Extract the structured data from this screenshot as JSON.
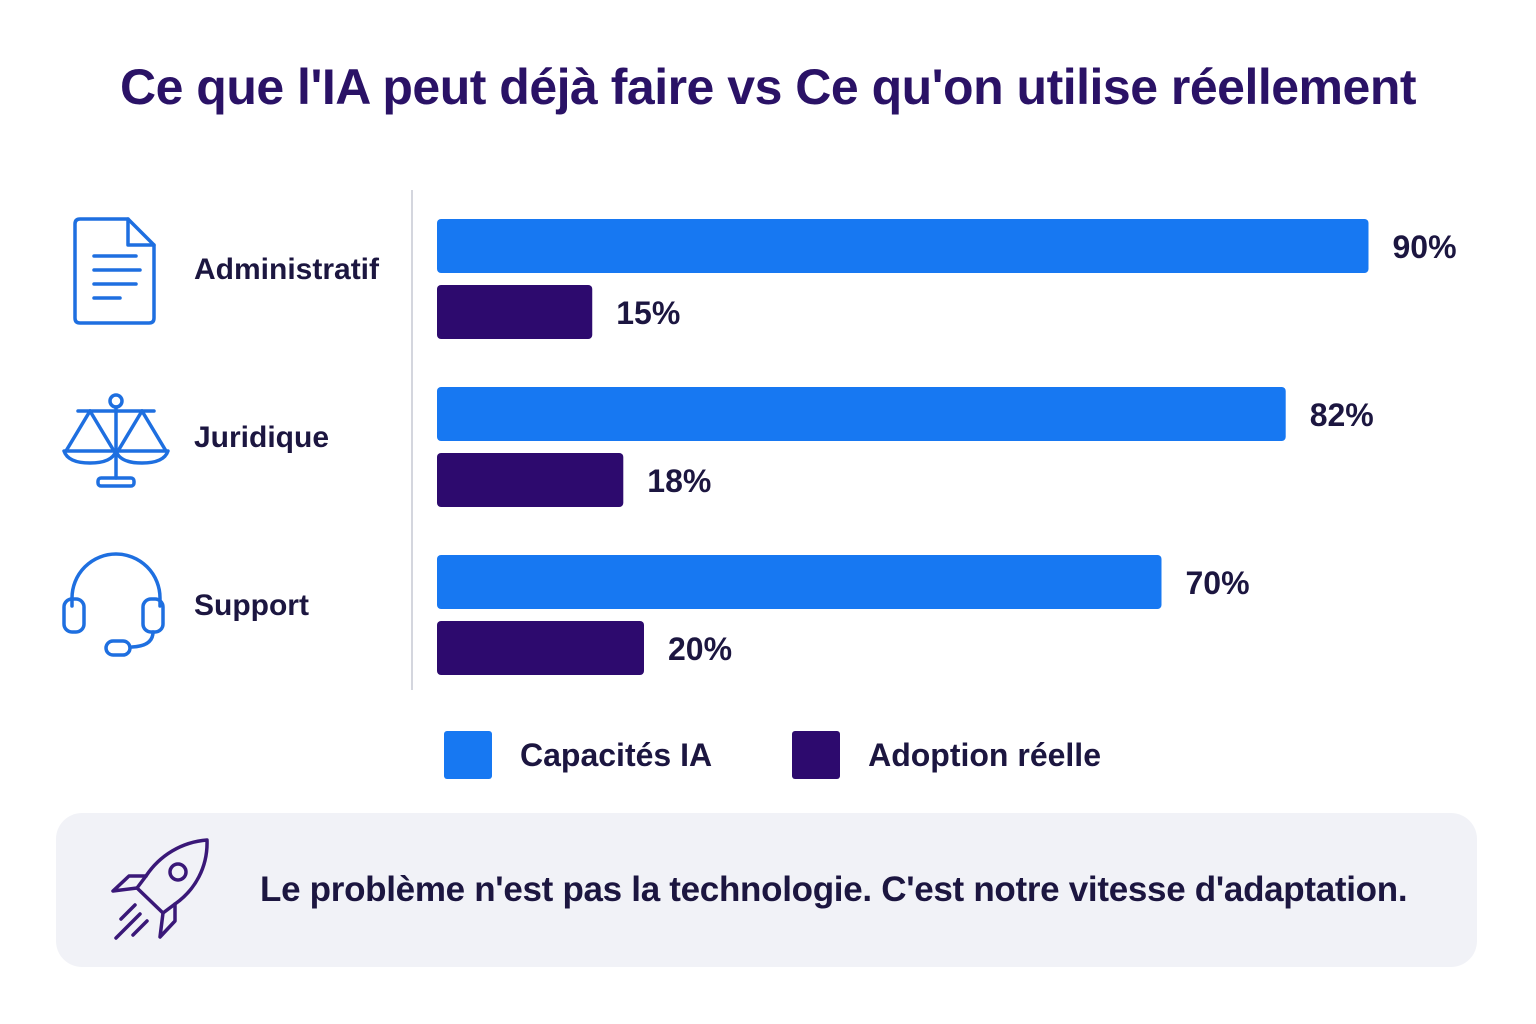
{
  "title": "Ce que l'IA peut déjà faire vs Ce qu'on utilise réellement",
  "colors": {
    "capacites": "#1778f2",
    "adoption": "#2d0a6e",
    "title": "#2a1266",
    "icon": "#1e6fe0",
    "rocket": "#3a1878",
    "callout_bg": "#f1f2f7"
  },
  "chart_data": {
    "type": "bar",
    "orientation": "horizontal",
    "categories": [
      "Administratif",
      "Juridique",
      "Support"
    ],
    "category_icons": [
      "document-icon",
      "scales-icon",
      "headset-icon"
    ],
    "series": [
      {
        "name": "Capacités IA",
        "values": [
          90,
          82,
          70
        ],
        "labels": [
          "90%",
          "82%",
          "70%"
        ]
      },
      {
        "name": "Adoption réelle",
        "values": [
          15,
          18,
          20
        ],
        "labels": [
          "15%",
          "18%",
          "20%"
        ]
      }
    ],
    "unit": "%",
    "grid": false,
    "legend": "bottom"
  },
  "legend": {
    "items": [
      {
        "label": "Capacités IA"
      },
      {
        "label": "Adoption réelle"
      }
    ]
  },
  "callout": {
    "icon": "rocket-icon",
    "text": "Le problème n'est pas la technologie. C'est notre vitesse d'adaptation."
  }
}
